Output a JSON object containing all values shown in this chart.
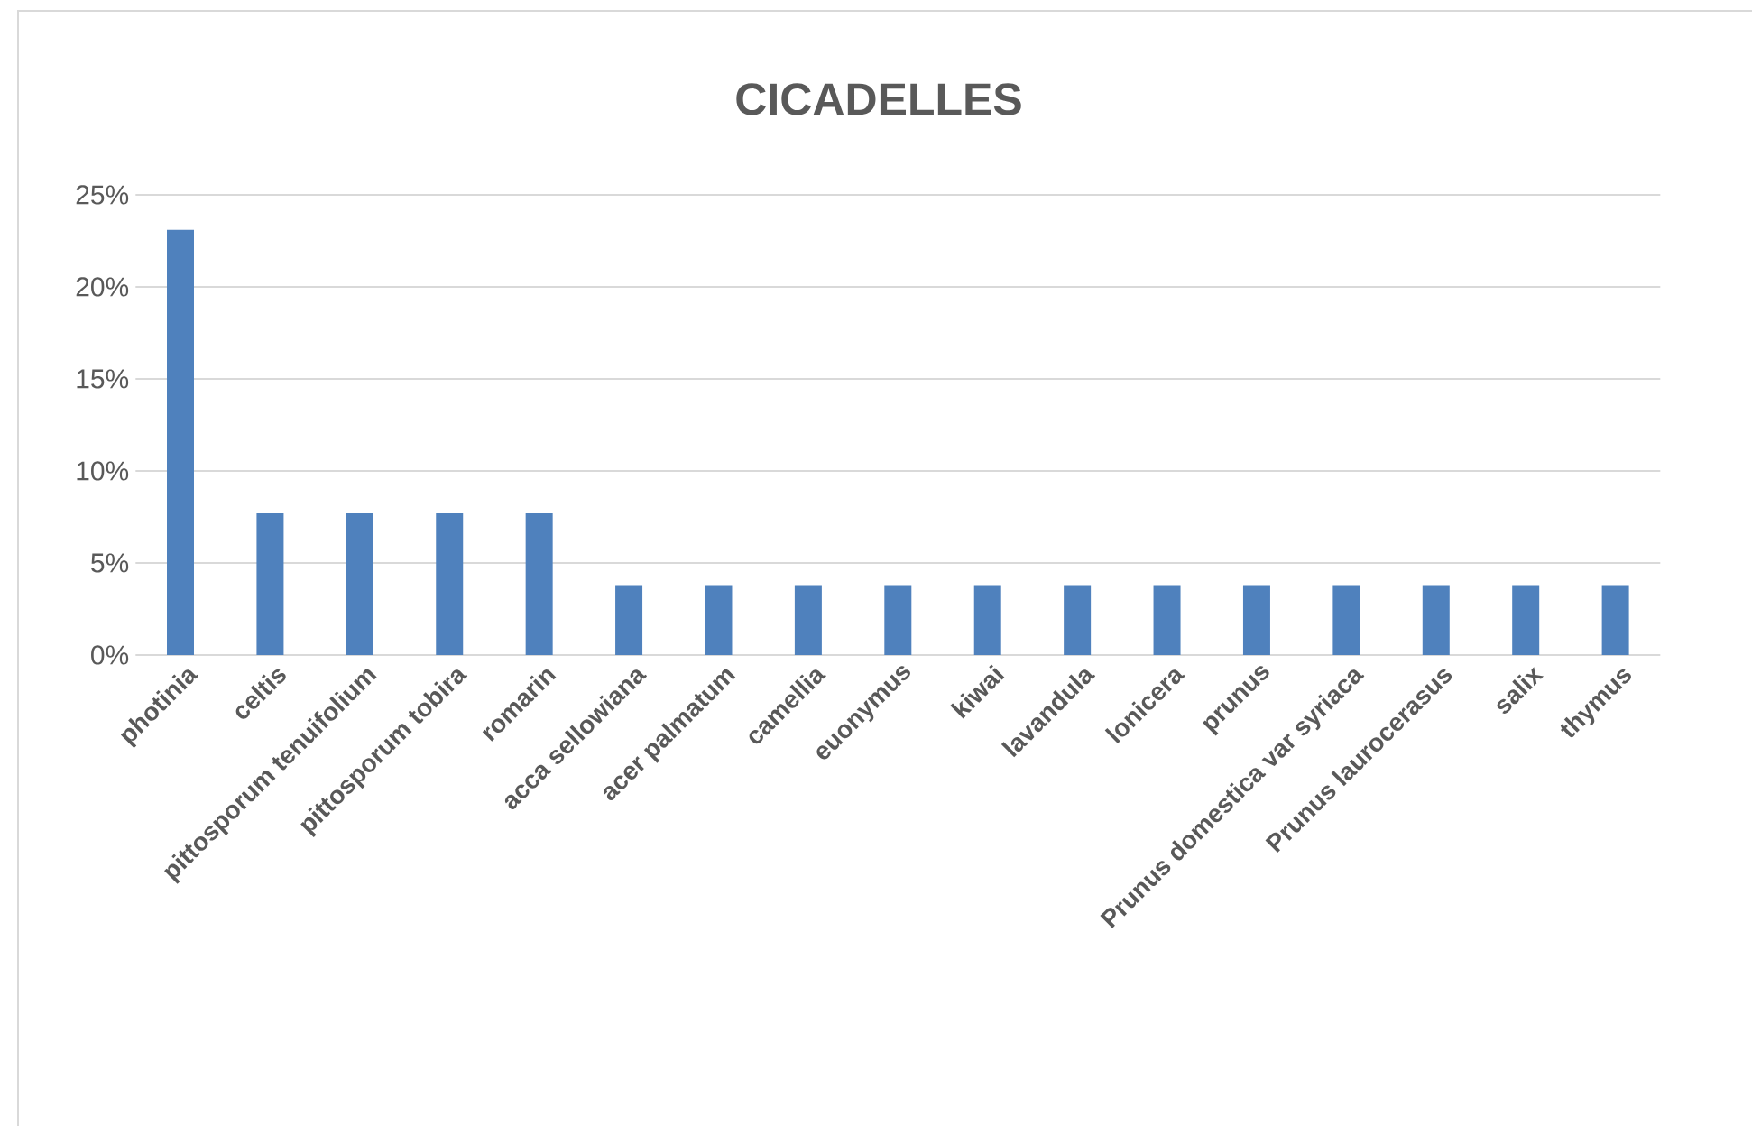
{
  "chart_data": {
    "type": "bar",
    "title": "CICADELLES",
    "categories": [
      "photinia",
      "celtis",
      "pittosporum  tenuifolium",
      "pittosporum  tobira",
      "romarin",
      "acca sellowiana",
      "acer palmatum",
      "camellia",
      "euonymus",
      "kiwai",
      "lavandula",
      "lonicera",
      "prunus",
      "Prunus domestica  var syriaca",
      "Prunus laurocerasus",
      "salix",
      "thymus"
    ],
    "values": [
      23.1,
      7.7,
      7.7,
      7.7,
      7.7,
      3.8,
      3.8,
      3.8,
      3.8,
      3.8,
      3.8,
      3.8,
      3.8,
      3.8,
      3.8,
      3.8,
      3.8
    ],
    "color": "#4f81bd",
    "ylim": [
      0,
      25
    ],
    "yticks": [
      {
        "value": 0,
        "label": "0%"
      },
      {
        "value": 5,
        "label": "5%"
      },
      {
        "value": 10,
        "label": "10%"
      },
      {
        "value": 15,
        "label": "15%"
      },
      {
        "value": 20,
        "label": "20%"
      },
      {
        "value": 25,
        "label": "25%"
      }
    ],
    "grid": "y"
  }
}
